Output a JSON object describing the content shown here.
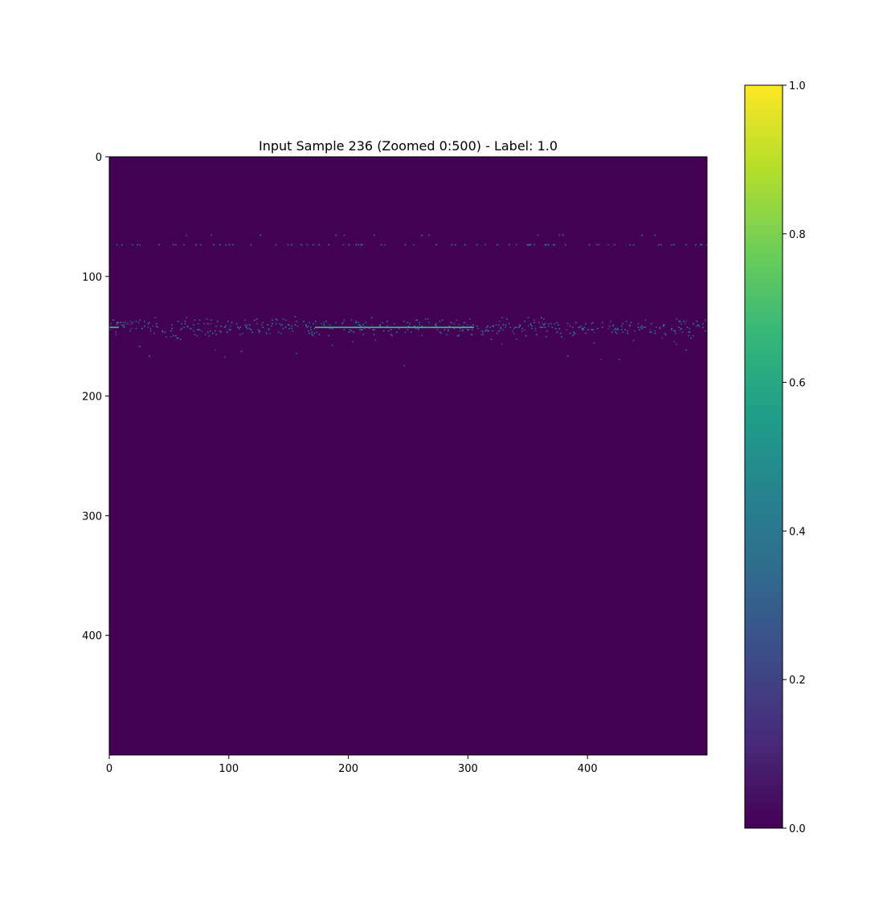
{
  "chart_data": {
    "type": "heatmap",
    "title": "Input Sample 236 (Zoomed 0:500) - Label: 1.0",
    "xlabel": "",
    "ylabel": "",
    "xlim": [
      0,
      500
    ],
    "ylim": [
      500,
      0
    ],
    "x_ticks": [
      0,
      100,
      200,
      300,
      400
    ],
    "y_ticks": [
      0,
      100,
      200,
      300,
      400
    ],
    "x_tick_labels": [
      "0",
      "100",
      "200",
      "300",
      "400"
    ],
    "y_tick_labels": [
      "0",
      "100",
      "200",
      "300",
      "400"
    ],
    "colormap": "viridis",
    "background_value": 0.0,
    "colorbar": {
      "range": [
        0.0,
        1.0
      ],
      "ticks": [
        0.0,
        0.2,
        0.4,
        0.6,
        0.8,
        1.0
      ],
      "tick_labels": [
        "0.0",
        "0.2",
        "0.4",
        "0.6",
        "0.8",
        "1.0"
      ]
    },
    "features": [
      {
        "name": "sparse-dot-row",
        "row": 73,
        "x_range": [
          0,
          500
        ],
        "value": 0.5
      },
      {
        "name": "scatter-band",
        "row_center": 142,
        "row_spread": [
          127,
          180
        ],
        "x_range": [
          0,
          500
        ],
        "value": 0.45
      },
      {
        "name": "bright-line",
        "row": 142,
        "segments": [
          [
            0,
            8
          ],
          [
            172,
            305
          ]
        ],
        "value": 0.62
      }
    ]
  },
  "colors": {
    "viridis": [
      "#440154",
      "#482878",
      "#3e4989",
      "#31688e",
      "#26828e",
      "#1f9e89",
      "#35b779",
      "#6ece58",
      "#b5de2b",
      "#fde725"
    ],
    "background": "#440154",
    "axis": "#000000"
  }
}
